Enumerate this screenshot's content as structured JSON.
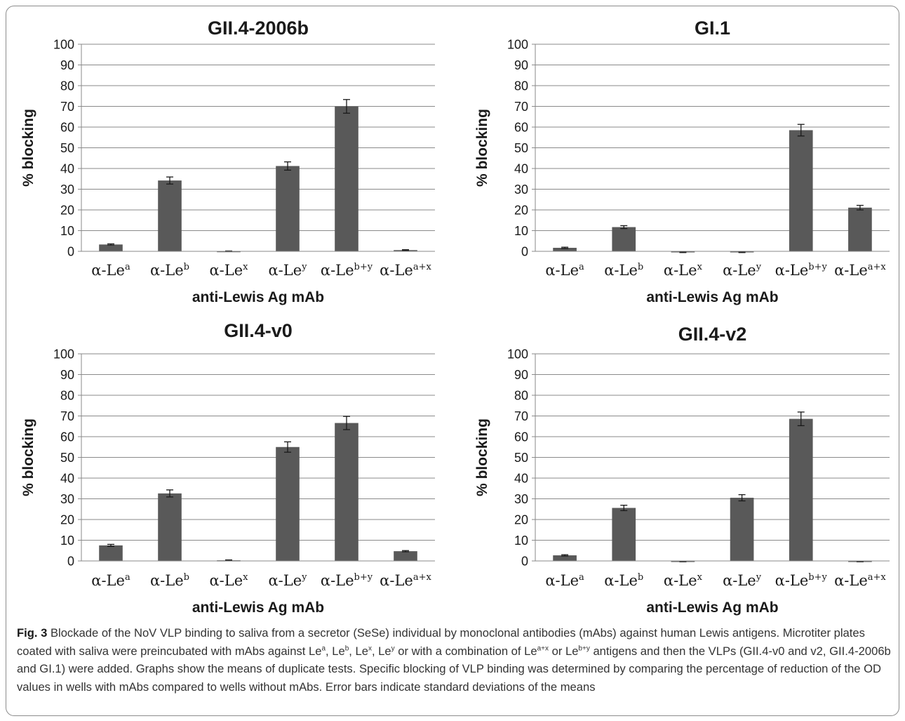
{
  "chart_data": [
    {
      "type": "bar",
      "title": "GII.4-2006b",
      "xlabel": "anti-Lewis Ag mAb",
      "ylabel": "% blocking",
      "ylim": [
        0,
        100
      ],
      "yticks": [
        0,
        10,
        20,
        30,
        40,
        50,
        60,
        70,
        80,
        90,
        100
      ],
      "grid": true,
      "categories": [
        {
          "base": "α-Le",
          "sup": "a"
        },
        {
          "base": "α-Le",
          "sup": "b"
        },
        {
          "base": "α-Le",
          "sup": "x"
        },
        {
          "base": "α-Le",
          "sup": "y"
        },
        {
          "base": "α-Le",
          "sup": "b+y"
        },
        {
          "base": "α-Le",
          "sup": "a+x"
        }
      ],
      "values": [
        3.3,
        34.2,
        0.1,
        41.2,
        70.0,
        0.6
      ],
      "errors": [
        0.3,
        1.7,
        0.1,
        2.0,
        3.3,
        0.2
      ],
      "bar_color": "#595959"
    },
    {
      "type": "bar",
      "title": "GI.1",
      "xlabel": "anti-Lewis Ag mAb",
      "ylabel": "% blocking",
      "ylim": [
        0,
        100
      ],
      "yticks": [
        0,
        10,
        20,
        30,
        40,
        50,
        60,
        70,
        80,
        90,
        100
      ],
      "grid": true,
      "categories": [
        {
          "base": "α-Le",
          "sup": "a"
        },
        {
          "base": "α-Le",
          "sup": "b"
        },
        {
          "base": "α-Le",
          "sup": "x"
        },
        {
          "base": "α-Le",
          "sup": "y"
        },
        {
          "base": "α-Le",
          "sup": "b+y"
        },
        {
          "base": "α-Le",
          "sup": "a+x"
        }
      ],
      "values": [
        1.7,
        11.7,
        -0.4,
        -0.4,
        58.5,
        21.1
      ],
      "errors": [
        0.3,
        0.7,
        0.2,
        0.2,
        2.8,
        1.1
      ],
      "bar_color": "#595959"
    },
    {
      "type": "bar",
      "title": "GII.4-v0",
      "xlabel": "anti-Lewis Ag mAb",
      "ylabel": "% blocking",
      "ylim": [
        0,
        100
      ],
      "yticks": [
        0,
        10,
        20,
        30,
        40,
        50,
        60,
        70,
        80,
        90,
        100
      ],
      "grid": true,
      "categories": [
        {
          "base": "α-Le",
          "sup": "a"
        },
        {
          "base": "α-Le",
          "sup": "b"
        },
        {
          "base": "α-Le",
          "sup": "x"
        },
        {
          "base": "α-Le",
          "sup": "y"
        },
        {
          "base": "α-Le",
          "sup": "b+y"
        },
        {
          "base": "α-Le",
          "sup": "a+x"
        }
      ],
      "values": [
        7.5,
        32.6,
        0.3,
        55.0,
        66.6,
        4.7
      ],
      "errors": [
        0.5,
        1.7,
        0.2,
        2.5,
        3.2,
        0.3
      ],
      "bar_color": "#595959"
    },
    {
      "type": "bar",
      "title": "GII.4-v2",
      "xlabel": "anti-Lewis Ag mAb",
      "ylabel": "% blocking",
      "ylim": [
        0,
        100
      ],
      "yticks": [
        0,
        10,
        20,
        30,
        40,
        50,
        60,
        70,
        80,
        90,
        100
      ],
      "grid": true,
      "categories": [
        {
          "base": "α-Le",
          "sup": "a"
        },
        {
          "base": "α-Le",
          "sup": "b"
        },
        {
          "base": "α-Le",
          "sup": "x"
        },
        {
          "base": "α-Le",
          "sup": "y"
        },
        {
          "base": "α-Le",
          "sup": "b+y"
        },
        {
          "base": "α-Le",
          "sup": "a+x"
        }
      ],
      "values": [
        2.7,
        25.6,
        -0.3,
        30.5,
        68.6,
        -0.3
      ],
      "errors": [
        0.3,
        1.3,
        0.1,
        1.5,
        3.3,
        0.1
      ],
      "bar_color": "#595959"
    }
  ],
  "caption": {
    "label": "Fig. 3",
    "parts": [
      {
        "t": " Blockade of the NoV VLP binding to saliva from a secretor (SeSe) individual by monoclonal antibodies (mAbs) against human Lewis antigens. Microtiter plates coated with saliva were preincubated with mAbs against Le"
      },
      {
        "t": "a",
        "sup": true
      },
      {
        "t": ", Le"
      },
      {
        "t": "b",
        "sup": true
      },
      {
        "t": ", Le"
      },
      {
        "t": "x",
        "sup": true
      },
      {
        "t": ", Le"
      },
      {
        "t": "y",
        "sup": true
      },
      {
        "t": " or with a combination of Le"
      },
      {
        "t": "a+x",
        "sup": true
      },
      {
        "t": " or Le"
      },
      {
        "t": "b+y",
        "sup": true
      },
      {
        "t": " antigens and then the VLPs (GII.4-v0 and v2, GII.4-2006b and GI.1) were added. Graphs show the means of duplicate tests. Specific blocking of VLP binding was determined by comparing the percentage of reduction of the OD values in wells with mAbs compared to wells without mAbs. Error bars indicate standard deviations of the means"
      }
    ]
  }
}
